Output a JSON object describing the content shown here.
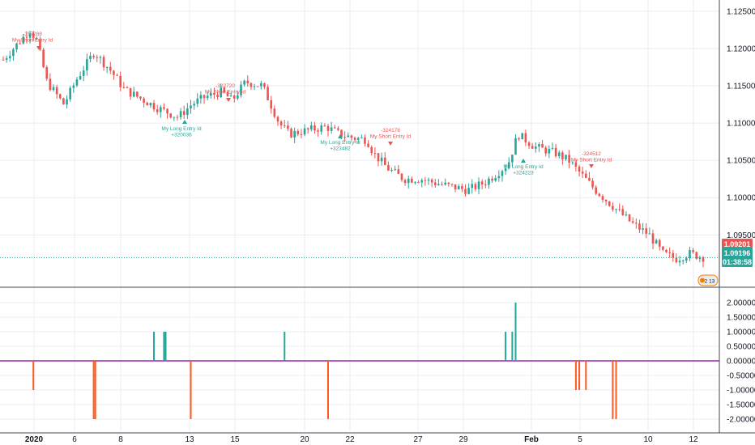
{
  "colors": {
    "up": "#26a69a",
    "down": "#ef5350",
    "grid": "#e8edf3",
    "axis_text": "#131722",
    "osc_pos": "#26a69a",
    "osc_neg": "#ff5a1f",
    "zero_line": "#9c27b0",
    "price_line": "#26a69a",
    "separator": "#434651"
  },
  "price_axis": {
    "ticks": [
      "1.12500",
      "1.12000",
      "1.11500",
      "1.11000",
      "1.10500",
      "1.10000",
      "1.09500"
    ]
  },
  "osc_axis": {
    "ticks": [
      "2.00000",
      "1.50000",
      "1.00000",
      "0.50000",
      "0.00000",
      "-0.50000",
      "-1.00000",
      "-1.50000",
      "-2.00000"
    ]
  },
  "time_axis": {
    "labels": [
      "2020",
      "6",
      "8",
      "13",
      "15",
      "20",
      "22",
      "27",
      "29",
      "Feb",
      "5",
      "10",
      "12"
    ]
  },
  "price_tags": {
    "last_price": "1.09201",
    "current": "1.09196",
    "countdown": "01:38:58"
  },
  "badge": {
    "text": "2 13"
  },
  "annotations": [
    {
      "line1": "-317288",
      "line2": "My Short Entry Id",
      "side": "short"
    },
    {
      "line1": "My Long Entry Id",
      "line2": "+320036",
      "side": "long"
    },
    {
      "line1": "-322720",
      "line2": "My Short Entry Id",
      "side": "short"
    },
    {
      "line1": "My Long Entry Id",
      "line2": "+323482",
      "side": "long"
    },
    {
      "line1": "-324178",
      "line2": "My Short Entry Id",
      "side": "short"
    },
    {
      "line1": "My Long Entry Id",
      "line2": "+324223",
      "side": "long"
    },
    {
      "line1": "-324512",
      "line2": "My Short Entry Id",
      "side": "short"
    }
  ],
  "chart_data": [
    {
      "type": "candlestick",
      "title": "",
      "x_labels": [
        "2020",
        "6",
        "8",
        "13",
        "15",
        "20",
        "22",
        "27",
        "29",
        "Feb",
        "5",
        "10",
        "12"
      ],
      "ylim": [
        1.0892,
        1.1265
      ],
      "close_path": [
        [
          0,
          1.1185
        ],
        [
          3,
          1.12
        ],
        [
          8,
          1.1225
        ],
        [
          10,
          1.121
        ],
        [
          13,
          1.1155
        ],
        [
          18,
          1.1125
        ],
        [
          22,
          1.116
        ],
        [
          27,
          1.1195
        ],
        [
          32,
          1.117
        ],
        [
          36,
          1.1145
        ],
        [
          42,
          1.113
        ],
        [
          46,
          1.112
        ],
        [
          52,
          1.1108
        ],
        [
          56,
          1.1125
        ],
        [
          60,
          1.1135
        ],
        [
          65,
          1.1142
        ],
        [
          68,
          1.113
        ],
        [
          72,
          1.1155
        ],
        [
          77,
          1.115
        ],
        [
          82,
          1.11
        ],
        [
          85,
          1.1085
        ],
        [
          90,
          1.109
        ],
        [
          96,
          1.1095
        ],
        [
          100,
          1.1085
        ],
        [
          104,
          1.108
        ],
        [
          108,
          1.1078
        ],
        [
          110,
          1.106
        ],
        [
          114,
          1.104
        ],
        [
          119,
          1.1025
        ],
        [
          124,
          1.1025
        ],
        [
          128,
          1.102
        ],
        [
          133,
          1.1015
        ],
        [
          138,
          1.101
        ],
        [
          143,
          1.102
        ],
        [
          146,
          1.103
        ],
        [
          150,
          1.1045
        ],
        [
          153,
          1.1085
        ],
        [
          155,
          1.1078
        ],
        [
          158,
          1.1068
        ],
        [
          164,
          1.106
        ],
        [
          168,
          1.105
        ],
        [
          172,
          1.103
        ],
        [
          176,
          1.101
        ],
        [
          182,
          1.0985
        ],
        [
          187,
          1.0965
        ],
        [
          192,
          1.095
        ],
        [
          196,
          1.0925
        ],
        [
          200,
          1.0918
        ],
        [
          204,
          1.0925
        ],
        [
          208,
          1.092
        ]
      ],
      "candle_count": 210,
      "last_price": 1.09196
    },
    {
      "type": "bar",
      "title": "",
      "ylim": [
        -2.0,
        2.0
      ],
      "ticks": [
        2,
        1.5,
        1,
        0.5,
        0,
        -0.5,
        -1,
        -1.5,
        -2
      ],
      "bars": [
        {
          "x": 9,
          "value": -1
        },
        {
          "x": 27,
          "value": -2
        },
        {
          "x": 27.5,
          "value": -2
        },
        {
          "x": 45,
          "value": 1
        },
        {
          "x": 48,
          "value": 1
        },
        {
          "x": 48.5,
          "value": 1
        },
        {
          "x": 56,
          "value": -2
        },
        {
          "x": 84,
          "value": 1
        },
        {
          "x": 97,
          "value": -2
        },
        {
          "x": 150,
          "value": 1
        },
        {
          "x": 152,
          "value": 1
        },
        {
          "x": 153,
          "value": 2
        },
        {
          "x": 171,
          "value": -1
        },
        {
          "x": 172,
          "value": -1
        },
        {
          "x": 174,
          "value": -1
        },
        {
          "x": 182,
          "value": -2
        },
        {
          "x": 183,
          "value": -2
        }
      ]
    }
  ]
}
